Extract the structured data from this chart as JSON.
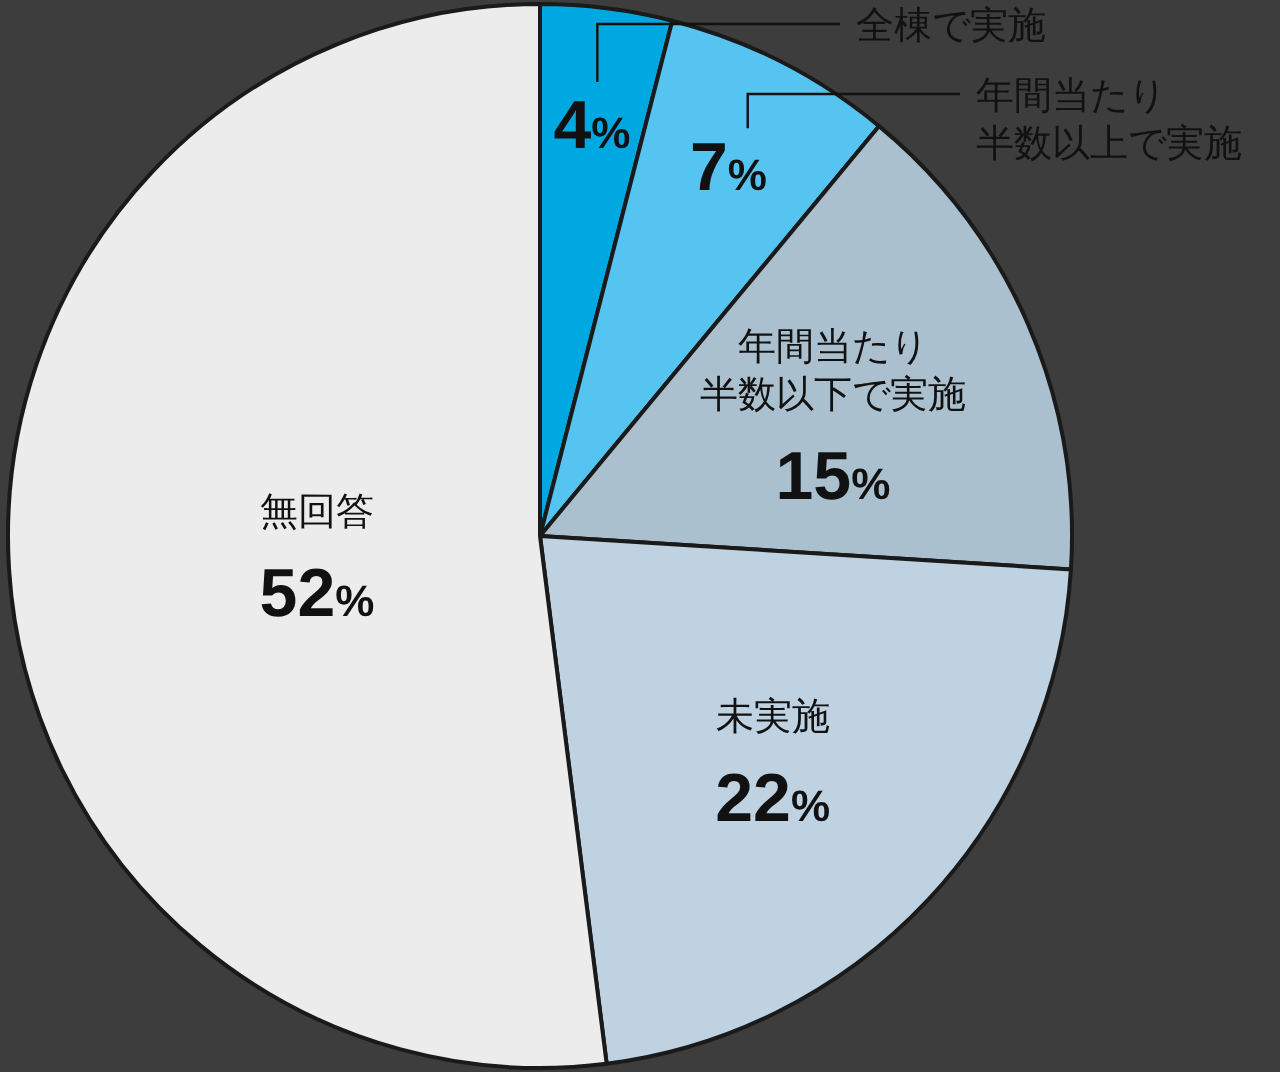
{
  "chart_data": {
    "type": "pie",
    "categories": [
      "全棟で実施",
      "年間当たり半数以上で実施",
      "年間当たり半数以下で実施",
      "未実施",
      "無回答"
    ],
    "values": [
      4,
      7,
      15,
      22,
      52
    ],
    "value_labels": [
      "4%",
      "7%",
      "15%",
      "22%",
      "52%"
    ],
    "colors": [
      "#00a8e1",
      "#56c4f0",
      "#aac0ce",
      "#bed2e2",
      "#ececec"
    ]
  }
}
